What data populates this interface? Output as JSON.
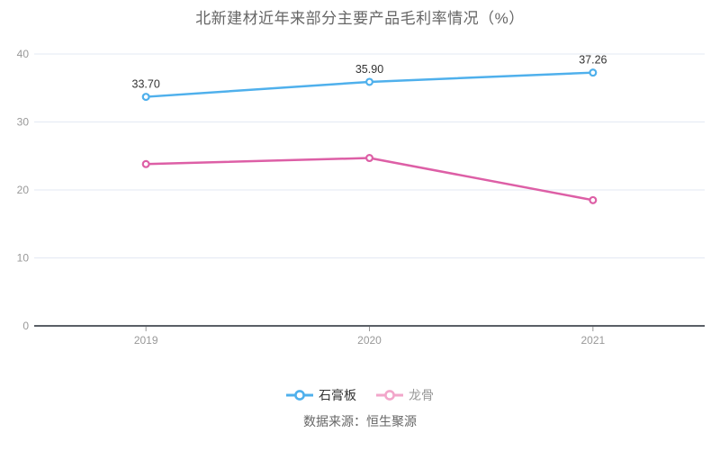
{
  "title": "北新建材近年来部分主要产品毛利率情况（%）",
  "source_note": "数据来源：恒生聚源",
  "colors": {
    "background": "#ffffff",
    "title_text": "#666666",
    "grid_line": "#e3e9f3",
    "axis_line": "#5a5f66",
    "tick_mark": "#999999",
    "axis_label_text": "#999999",
    "data_label_text": "#333333"
  },
  "chart_data": {
    "type": "line",
    "title": "北新建材近年来部分主要产品毛利率情况（%）",
    "categories": [
      "2019",
      "2020",
      "2021"
    ],
    "series": [
      {
        "name": "石膏板",
        "values": [
          33.7,
          35.9,
          37.26
        ],
        "point_labels": [
          "33.70",
          "35.90",
          "37.26"
        ],
        "show_point_labels": true,
        "color": "#4fb0ec",
        "legend_icon_color": "#4fb0ec",
        "legend_text_color": "#333333"
      },
      {
        "name": "龙骨",
        "values": [
          23.8,
          24.7,
          18.5
        ],
        "point_labels": [],
        "show_point_labels": false,
        "color": "#dd5fa6",
        "legend_icon_color": "#f2a6ca",
        "legend_text_color": "#999999"
      }
    ],
    "xlabel": "",
    "ylabel": "",
    "ylim": [
      0,
      40
    ],
    "yticks": [
      0,
      10,
      20,
      30,
      40
    ],
    "grid": "horizontal-only",
    "legend_position": "bottom",
    "marker": "empty-circle"
  }
}
